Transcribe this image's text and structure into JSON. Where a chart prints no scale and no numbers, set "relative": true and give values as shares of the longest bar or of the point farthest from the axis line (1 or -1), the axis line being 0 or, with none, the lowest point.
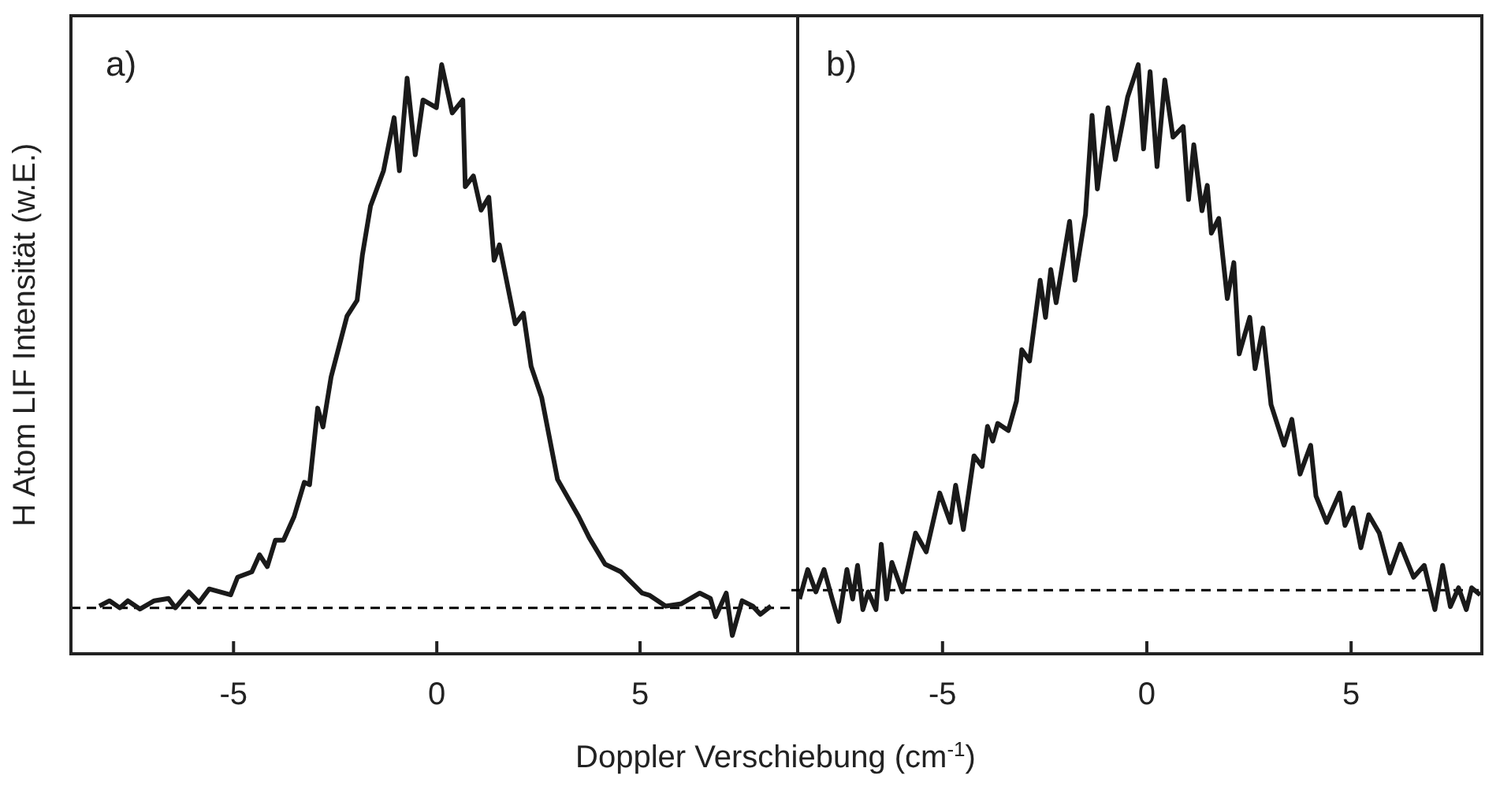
{
  "chart_data": [
    {
      "type": "line",
      "ylabel": "H Atom LIF Intensität (w.E.)",
      "xlabel": "Doppler Verschiebung (cm$^{-1}$)",
      "relative": true,
      "xlim": [
        -9,
        8.8
      ],
      "xticks": [
        -5,
        0,
        5
      ],
      "annotations": [
        "a)"
      ],
      "ref_lines": [
        {
          "axis": "y",
          "value": 0.078,
          "color": "#000000",
          "line_style": "dashed"
        }
      ],
      "series": [
        {
          "color": "#1a1a1a",
          "x": [
            -8.3,
            -8.05,
            -7.8,
            -7.6,
            -7.3,
            -6.95,
            -6.6,
            -6.43,
            -6.1,
            -5.85,
            -5.6,
            -5.07,
            -4.9,
            -4.55,
            -4.36,
            -4.17,
            -3.97,
            -3.77,
            -3.51,
            -3.26,
            -3.13,
            -2.93,
            -2.8,
            -2.6,
            -2.21,
            -1.96,
            -1.83,
            -1.63,
            -1.31,
            -1.05,
            -0.92,
            -0.73,
            -0.53,
            -0.34,
            -0.01,
            0.12,
            0.38,
            0.64,
            0.7,
            0.9,
            1.09,
            1.28,
            1.41,
            1.54,
            1.93,
            2.13,
            2.32,
            2.58,
            2.97,
            3.49,
            3.75,
            4.14,
            4.53,
            5.05,
            5.24,
            5.63,
            6.02,
            6.47,
            6.73,
            6.86,
            7.12,
            7.27,
            7.51,
            7.77,
            7.96,
            8.22
          ],
          "values": [
            0.081,
            0.09,
            0.078,
            0.09,
            0.076,
            0.09,
            0.094,
            0.078,
            0.105,
            0.087,
            0.11,
            0.1,
            0.13,
            0.139,
            0.168,
            0.148,
            0.193,
            0.193,
            0.233,
            0.291,
            0.287,
            0.417,
            0.385,
            0.47,
            0.573,
            0.6,
            0.677,
            0.76,
            0.82,
            0.91,
            0.82,
            0.977,
            0.847,
            0.94,
            0.927,
            1,
            0.918,
            0.94,
            0.793,
            0.811,
            0.753,
            0.775,
            0.668,
            0.694,
            0.56,
            0.578,
            0.488,
            0.435,
            0.296,
            0.233,
            0.197,
            0.152,
            0.139,
            0.103,
            0.099,
            0.081,
            0.085,
            0.103,
            0.094,
            0.063,
            0.103,
            0.031,
            0.09,
            0.081,
            0.067,
            0.081
          ]
        }
      ]
    },
    {
      "type": "line",
      "relative": true,
      "xlim": [
        -8.7,
        8.2
      ],
      "xticks": [
        -5,
        0,
        5
      ],
      "annotations": [
        "b)"
      ],
      "ref_lines": [
        {
          "axis": "y",
          "value": 0.108,
          "color": "#000000",
          "line_style": "dashed"
        }
      ],
      "series": [
        {
          "color": "#1a1a1a",
          "x": [
            -8.5,
            -8.3,
            -8.1,
            -7.9,
            -7.7,
            -7.54,
            -7.34,
            -7.2,
            -7.08,
            -6.95,
            -6.82,
            -6.63,
            -6.5,
            -6.37,
            -6.24,
            -5.98,
            -5.66,
            -5.4,
            -5.07,
            -4.81,
            -4.68,
            -4.49,
            -4.23,
            -4.03,
            -3.9,
            -3.77,
            -3.65,
            -3.39,
            -3.19,
            -3.06,
            -2.87,
            -2.61,
            -2.48,
            -2.35,
            -2.22,
            -1.89,
            -1.76,
            -1.5,
            -1.34,
            -1.21,
            -0.95,
            -0.77,
            -0.47,
            -0.21,
            -0.08,
            0.08,
            0.25,
            0.44,
            0.64,
            0.89,
            1.02,
            1.15,
            1.35,
            1.48,
            1.58,
            1.76,
            1.97,
            2.13,
            2.26,
            2.52,
            2.65,
            2.84,
            3.04,
            3.36,
            3.55,
            3.75,
            4.01,
            4.14,
            4.4,
            4.72,
            4.85,
            5.05,
            5.24,
            5.43,
            5.69,
            5.95,
            6.2,
            6.53,
            6.79,
            7.05,
            7.24,
            7.43,
            7.63,
            7.82,
            7.95,
            8.16
          ],
          "values": [
            0.093,
            0.143,
            0.105,
            0.143,
            0.093,
            0.055,
            0.143,
            0.093,
            0.15,
            0.075,
            0.105,
            0.075,
            0.186,
            0.093,
            0.155,
            0.105,
            0.205,
            0.173,
            0.273,
            0.223,
            0.286,
            0.211,
            0.336,
            0.318,
            0.386,
            0.361,
            0.391,
            0.379,
            0.429,
            0.516,
            0.497,
            0.634,
            0.571,
            0.652,
            0.596,
            0.734,
            0.634,
            0.746,
            0.914,
            0.789,
            0.927,
            0.839,
            0.945,
            1,
            0.857,
            0.988,
            0.827,
            0.974,
            0.877,
            0.895,
            0.771,
            0.864,
            0.752,
            0.795,
            0.714,
            0.739,
            0.603,
            0.664,
            0.509,
            0.571,
            0.484,
            0.553,
            0.423,
            0.354,
            0.398,
            0.305,
            0.354,
            0.268,
            0.223,
            0.273,
            0.218,
            0.248,
            0.18,
            0.236,
            0.205,
            0.137,
            0.186,
            0.13,
            0.15,
            0.075,
            0.15,
            0.08,
            0.112,
            0.075,
            0.112,
            0.1
          ]
        }
      ]
    }
  ]
}
